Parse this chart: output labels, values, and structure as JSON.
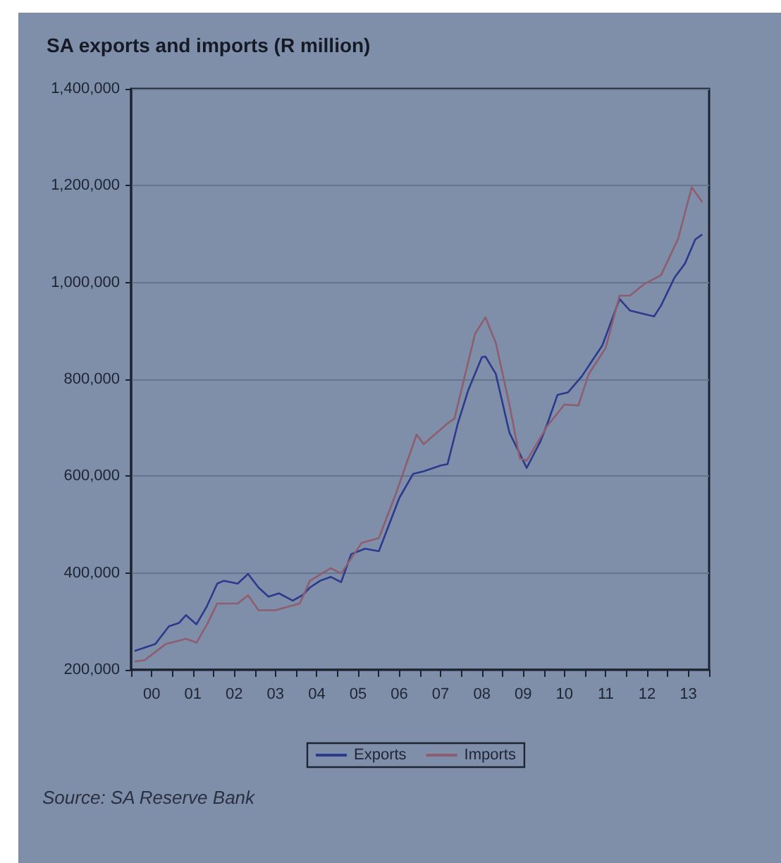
{
  "chart_data": {
    "type": "line",
    "title": "SA exports and imports (R million)",
    "annotations": [
      "Source: SA Reserve Bank"
    ],
    "series": [
      {
        "name": "Exports",
        "color": "#2b3a8c",
        "x": [
          "2000-02",
          "2000-08",
          "2000-12",
          "2001-03",
          "2001-05",
          "2001-08",
          "2001-11",
          "2002-02",
          "2002-04",
          "2002-08",
          "2002-11",
          "2003-02",
          "2003-05",
          "2003-08",
          "2003-12",
          "2004-03",
          "2004-05",
          "2004-08",
          "2004-11",
          "2005-02",
          "2005-05",
          "2005-09",
          "2006-01",
          "2006-07",
          "2006-11",
          "2007-02",
          "2007-07",
          "2007-09",
          "2007-12",
          "2008-03",
          "2008-07",
          "2008-08",
          "2008-11",
          "2009-03",
          "2009-08",
          "2009-12",
          "2010-02",
          "2010-05",
          "2010-08",
          "2010-12",
          "2011-06",
          "2011-11",
          "2012-02",
          "2012-05",
          "2012-09",
          "2012-11",
          "2013-03",
          "2013-06",
          "2013-09",
          "2013-11"
        ],
        "values": [
          239000,
          253000,
          290000,
          297000,
          313000,
          294000,
          331000,
          378000,
          384000,
          378000,
          398000,
          370000,
          351000,
          358000,
          343000,
          355000,
          370000,
          384000,
          392000,
          381000,
          439000,
          450000,
          445000,
          555000,
          605000,
          610000,
          622000,
          625000,
          709000,
          777000,
          846000,
          847000,
          811000,
          690000,
          617000,
          672000,
          709000,
          768000,
          773000,
          806000,
          870000,
          966000,
          942000,
          937000,
          930000,
          952000,
          1010000,
          1039000,
          1089000,
          1099000
        ]
      },
      {
        "name": "Imports",
        "color": "#8e5e70",
        "x": [
          "2000-02",
          "2000-05",
          "2000-11",
          "2001-05",
          "2001-08",
          "2001-11",
          "2002-02",
          "2002-08",
          "2002-11",
          "2003-02",
          "2003-07",
          "2004-02",
          "2004-05",
          "2004-11",
          "2005-02",
          "2005-08",
          "2006-01",
          "2006-06",
          "2006-12",
          "2007-02",
          "2007-09",
          "2007-11",
          "2008-05",
          "2008-08",
          "2008-11",
          "2009-03",
          "2009-06",
          "2009-08",
          "2010-02",
          "2010-07",
          "2010-11",
          "2011-02",
          "2011-07",
          "2011-11",
          "2012-02",
          "2012-06",
          "2012-11",
          "2013-04",
          "2013-08",
          "2013-11"
        ],
        "values": [
          217000,
          220000,
          253000,
          264000,
          256000,
          293000,
          337000,
          337000,
          354000,
          323000,
          323000,
          337000,
          384000,
          410000,
          399000,
          462000,
          472000,
          564000,
          686000,
          666000,
          709000,
          719000,
          894000,
          928000,
          875000,
          748000,
          637000,
          632000,
          704000,
          748000,
          746000,
          811000,
          865000,
          973000,
          973000,
          996000,
          1015000,
          1090000,
          1197000,
          1166000
        ]
      }
    ],
    "xlim": [
      "2000",
      "2014"
    ],
    "xticks": [
      {
        "value": "2000",
        "label": null
      },
      {
        "value": "2000-07",
        "label": "00"
      },
      {
        "value": "2001",
        "label": null
      },
      {
        "value": "2001-07",
        "label": "01"
      },
      {
        "value": "2002",
        "label": null
      },
      {
        "value": "2002-07",
        "label": "02"
      },
      {
        "value": "2003",
        "label": null
      },
      {
        "value": "2003-07",
        "label": "03"
      },
      {
        "value": "2004",
        "label": null
      },
      {
        "value": "2004-07",
        "label": "04"
      },
      {
        "value": "2005",
        "label": null
      },
      {
        "value": "2005-07",
        "label": "05"
      },
      {
        "value": "2006",
        "label": null
      },
      {
        "value": "2006-07",
        "label": "06"
      },
      {
        "value": "2007",
        "label": null
      },
      {
        "value": "2007-07",
        "label": "07"
      },
      {
        "value": "2008",
        "label": null
      },
      {
        "value": "2008-07",
        "label": "08"
      },
      {
        "value": "2009",
        "label": null
      },
      {
        "value": "2009-07",
        "label": "09"
      },
      {
        "value": "2010",
        "label": null
      },
      {
        "value": "2010-07",
        "label": "10"
      },
      {
        "value": "2011",
        "label": null
      },
      {
        "value": "2011-07",
        "label": "11"
      },
      {
        "value": "2012",
        "label": null
      },
      {
        "value": "2012-07",
        "label": "12"
      },
      {
        "value": "2013",
        "label": null
      },
      {
        "value": "2013-07",
        "label": "13"
      },
      {
        "value": "2014",
        "label": null
      }
    ],
    "ylim": [
      200000,
      1400000
    ],
    "yticks": [
      {
        "value": 200000,
        "label": "200,000"
      },
      {
        "value": 400000,
        "label": "400,000"
      },
      {
        "value": 600000,
        "label": "600,000"
      },
      {
        "value": 800000,
        "label": "800,000"
      },
      {
        "value": 1000000,
        "label": "1,000,000"
      },
      {
        "value": 1200000,
        "label": "1,200,000"
      },
      {
        "value": 1400000,
        "label": "1,400,000"
      }
    ],
    "grid": "y",
    "legend": "bottom",
    "marker": "none",
    "line_style": "solid"
  }
}
